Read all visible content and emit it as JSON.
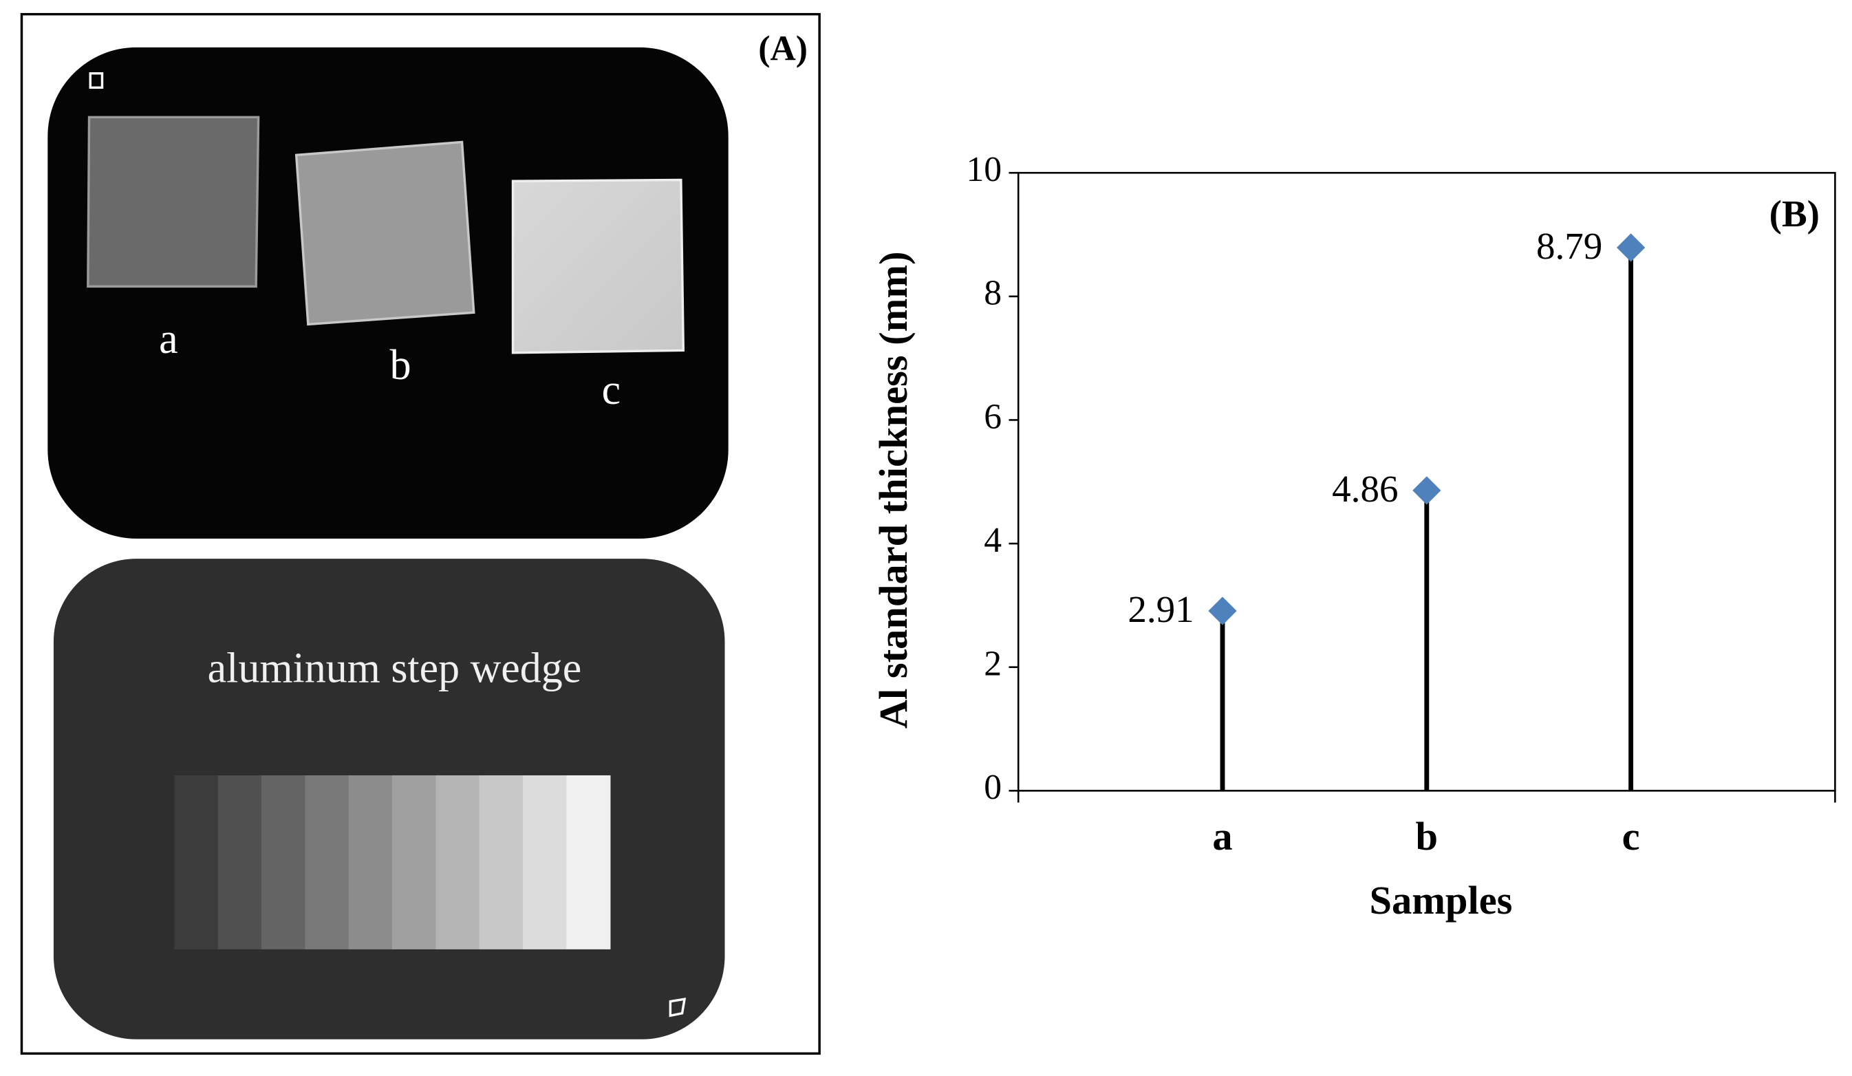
{
  "panel_a": {
    "label": "(A)",
    "sample_labels": [
      "a",
      "b",
      "c"
    ],
    "wedge_label": "aluminum step wedge"
  },
  "chart_data": {
    "type": "stem",
    "panel_label": "(B)",
    "y_label": "Al standard thickness (mm)",
    "x_label": "Samples",
    "categories": [
      "a",
      "b",
      "c"
    ],
    "values": [
      2.91,
      4.86,
      8.79
    ],
    "color": "#4f81bd",
    "ylim": [
      0,
      10
    ],
    "yticks": [
      0,
      2,
      4,
      6,
      8,
      10
    ],
    "grid": false
  }
}
